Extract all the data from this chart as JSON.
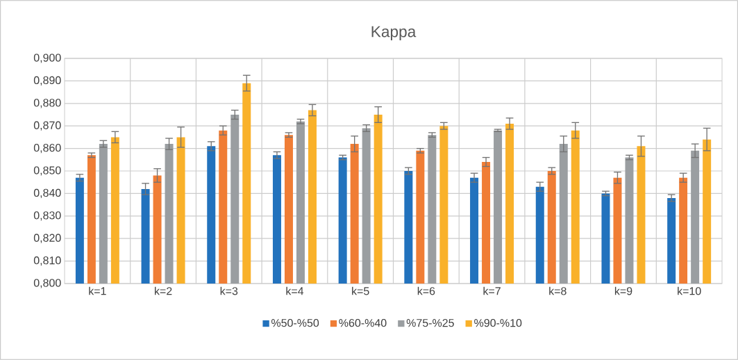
{
  "chart_data": {
    "type": "bar",
    "title": "Kappa",
    "categories": [
      "k=1",
      "k=2",
      "k=3",
      "k=4",
      "k=5",
      "k=6",
      "k=7",
      "k=8",
      "k=9",
      "k=10"
    ],
    "series": [
      {
        "name": "%50-%50",
        "color": "#2272bd",
        "values": [
          0.847,
          0.842,
          0.861,
          0.857,
          0.856,
          0.85,
          0.847,
          0.843,
          0.84,
          0.838
        ],
        "errors": [
          0.0015,
          0.0025,
          0.002,
          0.0015,
          0.001,
          0.0015,
          0.002,
          0.002,
          0.001,
          0.0015
        ]
      },
      {
        "name": "%60-%40",
        "color": "#f07d35",
        "values": [
          0.857,
          0.848,
          0.868,
          0.866,
          0.862,
          0.859,
          0.854,
          0.85,
          0.847,
          0.847
        ],
        "errors": [
          0.001,
          0.003,
          0.002,
          0.001,
          0.0035,
          0.001,
          0.002,
          0.0015,
          0.0025,
          0.002
        ]
      },
      {
        "name": "%75-%25",
        "color": "#9a9ea1",
        "values": [
          0.862,
          0.862,
          0.875,
          0.872,
          0.869,
          0.866,
          0.868,
          0.862,
          0.856,
          0.859
        ],
        "errors": [
          0.0015,
          0.0025,
          0.002,
          0.001,
          0.0015,
          0.001,
          0.0005,
          0.0035,
          0.001,
          0.003
        ]
      },
      {
        "name": "%90-%10",
        "color": "#f9b12a",
        "values": [
          0.865,
          0.865,
          0.889,
          0.877,
          0.875,
          0.87,
          0.871,
          0.868,
          0.861,
          0.864
        ],
        "errors": [
          0.0025,
          0.0045,
          0.0035,
          0.0025,
          0.0035,
          0.0015,
          0.0025,
          0.0035,
          0.0045,
          0.005
        ]
      }
    ],
    "ylim": [
      0.8,
      0.9
    ],
    "yticks": [
      {
        "value": 0.8,
        "label": "0,800"
      },
      {
        "value": 0.81,
        "label": "0,810"
      },
      {
        "value": 0.82,
        "label": "0,820"
      },
      {
        "value": 0.83,
        "label": "0,830"
      },
      {
        "value": 0.84,
        "label": "0,840"
      },
      {
        "value": 0.85,
        "label": "0,850"
      },
      {
        "value": 0.86,
        "label": "0,860"
      },
      {
        "value": 0.87,
        "label": "0,870"
      },
      {
        "value": 0.88,
        "label": "0,880"
      },
      {
        "value": 0.89,
        "label": "0,890"
      },
      {
        "value": 0.9,
        "label": "0,900"
      }
    ],
    "grid": true,
    "legend": "bottom"
  }
}
